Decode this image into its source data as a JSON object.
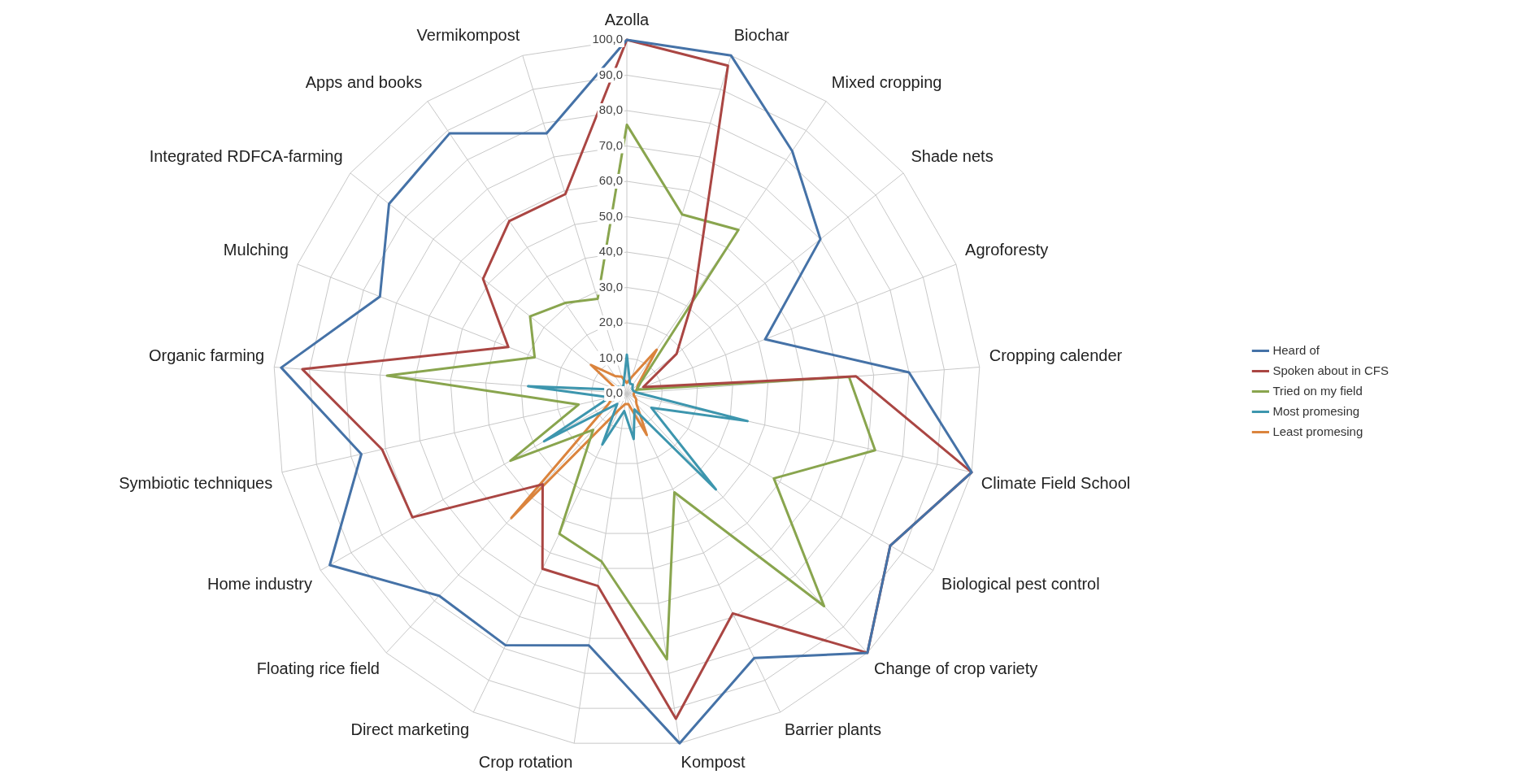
{
  "chart_data": {
    "type": "radar",
    "categories": [
      "Azolla",
      "Biochar",
      "Mixed cropping",
      "Shade nets",
      "Agroforesty",
      "Cropping calender",
      "Climate Field School",
      "Biological pest control",
      "Change of crop variety",
      "Barrier plants",
      "Kompost",
      "Crop rotation",
      "Direct marketing",
      "Floating rice field",
      "Home industry",
      "Symbiotic techniques",
      "Organic farming",
      "Mulching",
      "Integrated RDFCA-farming",
      "Apps and books",
      "Vermikompost"
    ],
    "series": [
      {
        "name": "Heard of",
        "color": "#4572a7",
        "values": [
          100,
          100,
          83,
          70,
          42,
          80,
          100,
          86,
          100,
          83,
          100,
          72,
          79,
          78,
          97,
          77,
          98,
          75,
          86,
          89,
          77
        ]
      },
      {
        "name": "Spoken about in CFS",
        "color": "#aa4643",
        "values": [
          100,
          97,
          34,
          18,
          5,
          65,
          100,
          86,
          100,
          69,
          93,
          55,
          55,
          35,
          70,
          71,
          92,
          36,
          52,
          59,
          59
        ]
      },
      {
        "name": "Tried on my field",
        "color": "#89a54e",
        "values": [
          76,
          53,
          56,
          5,
          3,
          63,
          72,
          48,
          82,
          31,
          76,
          48,
          44,
          14,
          38,
          14,
          68,
          28,
          35,
          31,
          28
        ]
      },
      {
        "name": "Most promesing",
        "color": "#3d96ae",
        "values": [
          11,
          3,
          3,
          2,
          2,
          3,
          35,
          8,
          37,
          5,
          13,
          5,
          16,
          4,
          27,
          5,
          28,
          3,
          3,
          2,
          3
        ]
      },
      {
        "name": "Least promesing",
        "color": "#db843d",
        "values": [
          3,
          5,
          15,
          4,
          3,
          2,
          2,
          3,
          4,
          13,
          3,
          3,
          5,
          48,
          6,
          4,
          3,
          3,
          13,
          6,
          5
        ]
      }
    ],
    "ylim": [
      0,
      100
    ],
    "yticks": [
      {
        "value": 0,
        "label": "0,0"
      },
      {
        "value": 10,
        "label": "10,0"
      },
      {
        "value": 20,
        "label": "20,0"
      },
      {
        "value": 30,
        "label": "30,0"
      },
      {
        "value": 40,
        "label": "40,0"
      },
      {
        "value": 50,
        "label": "50,0"
      },
      {
        "value": 60,
        "label": "60,0"
      },
      {
        "value": 70,
        "label": "70,0"
      },
      {
        "value": 80,
        "label": "80,0"
      },
      {
        "value": 90,
        "label": "90,0"
      },
      {
        "value": 100,
        "label": "100,0"
      }
    ],
    "grid": true,
    "legend": "right",
    "marker": "none",
    "line_style": "solid"
  }
}
